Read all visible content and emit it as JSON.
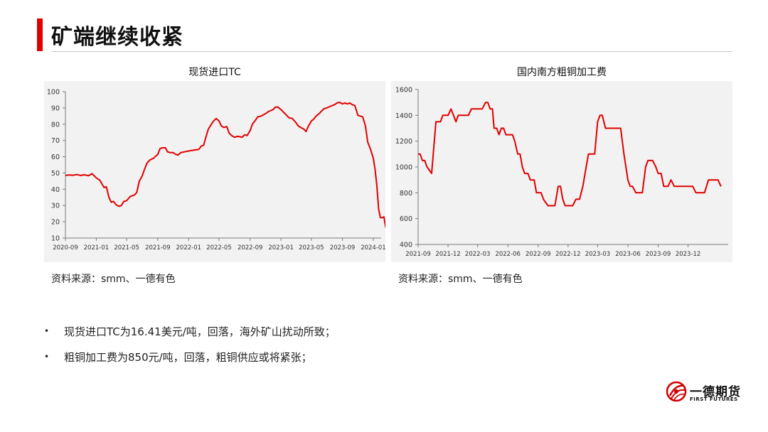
{
  "page": {
    "title": "矿端继续收紧",
    "accent_color": "#e00000",
    "line_color": "#e00000"
  },
  "charts": {
    "left": {
      "title": "现货进口TC",
      "source": "资料来源：smm、一德有色"
    },
    "right": {
      "title": "国内南方粗铜加工费",
      "source": "资料来源：smm、一德有色"
    }
  },
  "bullets": [
    {
      "text": "现货进口TC为16.41美元/吨，回落，海外矿山扰动所致；"
    },
    {
      "text": "粗铜加工费为850元/吨，回落，粗铜供应或将紧张；"
    }
  ],
  "logo": {
    "name_cn": "一德期货",
    "name_en": "FIRST FUTURES",
    "icon": "swirl-logo-icon"
  },
  "chart_data": [
    {
      "type": "line",
      "xlim": [
        "2020-09",
        "2024-02"
      ],
      "ylim": [
        10,
        100
      ],
      "grid": false,
      "x_ticks": [
        "2020-09",
        "2021-01",
        "2021-05",
        "2021-09",
        "2022-01",
        "2022-05",
        "2022-09",
        "2023-01",
        "2023-05",
        "2023-09",
        "2024-01"
      ],
      "y_ticks": [
        10,
        20,
        30,
        40,
        50,
        60,
        70,
        80,
        90,
        100
      ],
      "series": [
        {
          "color": "#e00000",
          "points": [
            [
              "2020-09-01",
              48.5
            ],
            [
              "2020-09-15",
              48.8
            ],
            [
              "2020-10-01",
              48.6
            ],
            [
              "2020-10-15",
              49
            ],
            [
              "2020-11-01",
              48.5
            ],
            [
              "2020-11-15",
              48.9
            ],
            [
              "2020-12-01",
              48.3
            ],
            [
              "2020-12-15",
              49.6
            ],
            [
              "2021-01-01",
              47
            ],
            [
              "2021-01-15",
              45.5
            ],
            [
              "2021-02-01",
              41
            ],
            [
              "2021-02-10",
              41.5
            ],
            [
              "2021-02-20",
              35
            ],
            [
              "2021-03-01",
              32
            ],
            [
              "2021-03-10",
              32.5
            ],
            [
              "2021-03-20",
              30.5
            ],
            [
              "2021-04-01",
              29.5
            ],
            [
              "2021-04-10",
              30
            ],
            [
              "2021-04-20",
              32.5
            ],
            [
              "2021-05-01",
              33
            ],
            [
              "2021-05-15",
              35.5
            ],
            [
              "2021-06-01",
              36.5
            ],
            [
              "2021-06-10",
              38
            ],
            [
              "2021-06-20",
              45
            ],
            [
              "2021-07-01",
              48
            ],
            [
              "2021-07-10",
              52
            ],
            [
              "2021-07-20",
              56
            ],
            [
              "2021-08-01",
              58
            ],
            [
              "2021-08-15",
              59
            ],
            [
              "2021-09-01",
              61.5
            ],
            [
              "2021-09-10",
              65
            ],
            [
              "2021-09-20",
              65.5
            ],
            [
              "2021-10-01",
              65.5
            ],
            [
              "2021-10-10",
              63
            ],
            [
              "2021-10-20",
              62.5
            ],
            [
              "2021-11-01",
              62.5
            ],
            [
              "2021-11-10",
              61.5
            ],
            [
              "2021-11-20",
              61
            ],
            [
              "2021-12-01",
              62.5
            ],
            [
              "2021-12-15",
              63
            ],
            [
              "2022-01-01",
              63.5
            ],
            [
              "2022-01-20",
              64
            ],
            [
              "2022-02-10",
              64.5
            ],
            [
              "2022-02-20",
              66.5
            ],
            [
              "2022-03-01",
              67
            ],
            [
              "2022-03-10",
              72
            ],
            [
              "2022-03-20",
              77
            ],
            [
              "2022-04-01",
              80
            ],
            [
              "2022-04-10",
              82
            ],
            [
              "2022-04-20",
              83.5
            ],
            [
              "2022-05-01",
              82
            ],
            [
              "2022-05-10",
              79
            ],
            [
              "2022-05-20",
              78
            ],
            [
              "2022-06-01",
              78.5
            ],
            [
              "2022-06-10",
              74.5
            ],
            [
              "2022-06-20",
              73
            ],
            [
              "2022-07-01",
              72
            ],
            [
              "2022-07-15",
              72.5
            ],
            [
              "2022-08-01",
              72
            ],
            [
              "2022-08-10",
              73.5
            ],
            [
              "2022-08-20",
              73
            ],
            [
              "2022-09-01",
              76
            ],
            [
              "2022-09-10",
              80
            ],
            [
              "2022-09-20",
              82
            ],
            [
              "2022-10-01",
              84.5
            ],
            [
              "2022-10-15",
              85
            ],
            [
              "2022-11-01",
              86.5
            ],
            [
              "2022-11-15",
              88
            ],
            [
              "2022-12-01",
              89
            ],
            [
              "2022-12-10",
              90.5
            ],
            [
              "2022-12-20",
              90.5
            ],
            [
              "2023-01-01",
              89
            ],
            [
              "2023-01-10",
              87.5
            ],
            [
              "2023-01-20",
              86
            ],
            [
              "2023-02-01",
              84
            ],
            [
              "2023-02-15",
              83.5
            ],
            [
              "2023-03-01",
              81
            ],
            [
              "2023-03-10",
              79
            ],
            [
              "2023-03-20",
              78
            ],
            [
              "2023-04-01",
              77
            ],
            [
              "2023-04-10",
              75.5
            ],
            [
              "2023-04-20",
              79
            ],
            [
              "2023-05-01",
              82
            ],
            [
              "2023-05-10",
              83
            ],
            [
              "2023-05-20",
              85
            ],
            [
              "2023-06-01",
              86.5
            ],
            [
              "2023-06-10",
              88
            ],
            [
              "2023-06-20",
              89.5
            ],
            [
              "2023-07-01",
              90
            ],
            [
              "2023-07-15",
              91
            ],
            [
              "2023-08-01",
              92
            ],
            [
              "2023-08-10",
              93
            ],
            [
              "2023-08-20",
              93.5
            ],
            [
              "2023-09-01",
              92.5
            ],
            [
              "2023-09-10",
              93
            ],
            [
              "2023-09-20",
              92.5
            ],
            [
              "2023-10-01",
              93
            ],
            [
              "2023-10-10",
              92
            ],
            [
              "2023-10-20",
              91.5
            ],
            [
              "2023-11-01",
              85.5
            ],
            [
              "2023-11-10",
              85
            ],
            [
              "2023-11-20",
              84.5
            ],
            [
              "2023-12-01",
              79
            ],
            [
              "2023-12-10",
              69
            ],
            [
              "2023-12-20",
              65
            ],
            [
              "2024-01-01",
              59
            ],
            [
              "2024-01-08",
              52
            ],
            [
              "2024-01-15",
              42
            ],
            [
              "2024-01-22",
              28
            ],
            [
              "2024-01-29",
              22.5
            ],
            [
              "2024-02-05",
              22.5
            ],
            [
              "2024-02-12",
              23
            ],
            [
              "2024-02-19",
              16.41
            ]
          ]
        }
      ]
    },
    {
      "type": "line",
      "xlim": [
        "2021-09",
        "2024-04"
      ],
      "ylim": [
        400,
        1600
      ],
      "grid": false,
      "x_ticks": [
        "2021-09",
        "2021-12",
        "2022-03",
        "2022-06",
        "2022-09",
        "2022-12",
        "2023-03",
        "2023-06",
        "2023-09",
        "2023-12"
      ],
      "y_ticks": [
        400,
        600,
        800,
        1000,
        1200,
        1400,
        1600
      ],
      "series": [
        {
          "color": "#e00000",
          "points": [
            [
              "2021-09-01",
              1100
            ],
            [
              "2021-09-07",
              1100
            ],
            [
              "2021-09-14",
              1050
            ],
            [
              "2021-09-21",
              1050
            ],
            [
              "2021-09-28",
              1000
            ],
            [
              "2021-10-05",
              975
            ],
            [
              "2021-10-12",
              950
            ],
            [
              "2021-10-25",
              1350
            ],
            [
              "2021-11-08",
              1350
            ],
            [
              "2021-11-15",
              1400
            ],
            [
              "2021-12-01",
              1400
            ],
            [
              "2021-12-10",
              1450
            ],
            [
              "2021-12-25",
              1350
            ],
            [
              "2022-01-01",
              1400
            ],
            [
              "2022-02-01",
              1400
            ],
            [
              "2022-02-10",
              1450
            ],
            [
              "2022-03-15",
              1450
            ],
            [
              "2022-03-25",
              1500
            ],
            [
              "2022-04-01",
              1500
            ],
            [
              "2022-04-08",
              1450
            ],
            [
              "2022-04-15",
              1450
            ],
            [
              "2022-04-20",
              1300
            ],
            [
              "2022-04-28",
              1300
            ],
            [
              "2022-05-05",
              1250
            ],
            [
              "2022-05-12",
              1300
            ],
            [
              "2022-05-19",
              1300
            ],
            [
              "2022-05-26",
              1250
            ],
            [
              "2022-06-15",
              1250
            ],
            [
              "2022-06-22",
              1200
            ],
            [
              "2022-07-01",
              1100
            ],
            [
              "2022-07-08",
              1100
            ],
            [
              "2022-07-15",
              1000
            ],
            [
              "2022-07-22",
              950
            ],
            [
              "2022-08-01",
              950
            ],
            [
              "2022-08-08",
              900
            ],
            [
              "2022-08-20",
              900
            ],
            [
              "2022-08-27",
              800
            ],
            [
              "2022-09-10",
              800
            ],
            [
              "2022-09-17",
              750
            ],
            [
              "2022-09-24",
              725
            ],
            [
              "2022-10-01",
              700
            ],
            [
              "2022-10-22",
              700
            ],
            [
              "2022-11-01",
              850
            ],
            [
              "2022-11-08",
              850
            ],
            [
              "2022-11-15",
              750
            ],
            [
              "2022-11-22",
              700
            ],
            [
              "2022-12-15",
              700
            ],
            [
              "2022-12-25",
              750
            ],
            [
              "2023-01-05",
              750
            ],
            [
              "2023-01-15",
              850
            ],
            [
              "2023-01-25",
              1000
            ],
            [
              "2023-02-01",
              1100
            ],
            [
              "2023-02-20",
              1100
            ],
            [
              "2023-03-01",
              1350
            ],
            [
              "2023-03-08",
              1400
            ],
            [
              "2023-03-15",
              1400
            ],
            [
              "2023-03-25",
              1300
            ],
            [
              "2023-05-10",
              1300
            ],
            [
              "2023-05-20",
              1100
            ],
            [
              "2023-06-01",
              900
            ],
            [
              "2023-06-08",
              850
            ],
            [
              "2023-06-15",
              850
            ],
            [
              "2023-06-25",
              800
            ],
            [
              "2023-07-15",
              800
            ],
            [
              "2023-07-25",
              1000
            ],
            [
              "2023-08-01",
              1050
            ],
            [
              "2023-08-15",
              1050
            ],
            [
              "2023-08-25",
              1000
            ],
            [
              "2023-09-01",
              950
            ],
            [
              "2023-09-10",
              950
            ],
            [
              "2023-09-18",
              850
            ],
            [
              "2023-10-01",
              850
            ],
            [
              "2023-10-10",
              900
            ],
            [
              "2023-10-20",
              850
            ],
            [
              "2023-12-15",
              850
            ],
            [
              "2023-12-25",
              800
            ],
            [
              "2024-01-20",
              800
            ],
            [
              "2024-02-01",
              900
            ],
            [
              "2024-03-01",
              900
            ],
            [
              "2024-03-10",
              850
            ]
          ]
        }
      ]
    }
  ]
}
